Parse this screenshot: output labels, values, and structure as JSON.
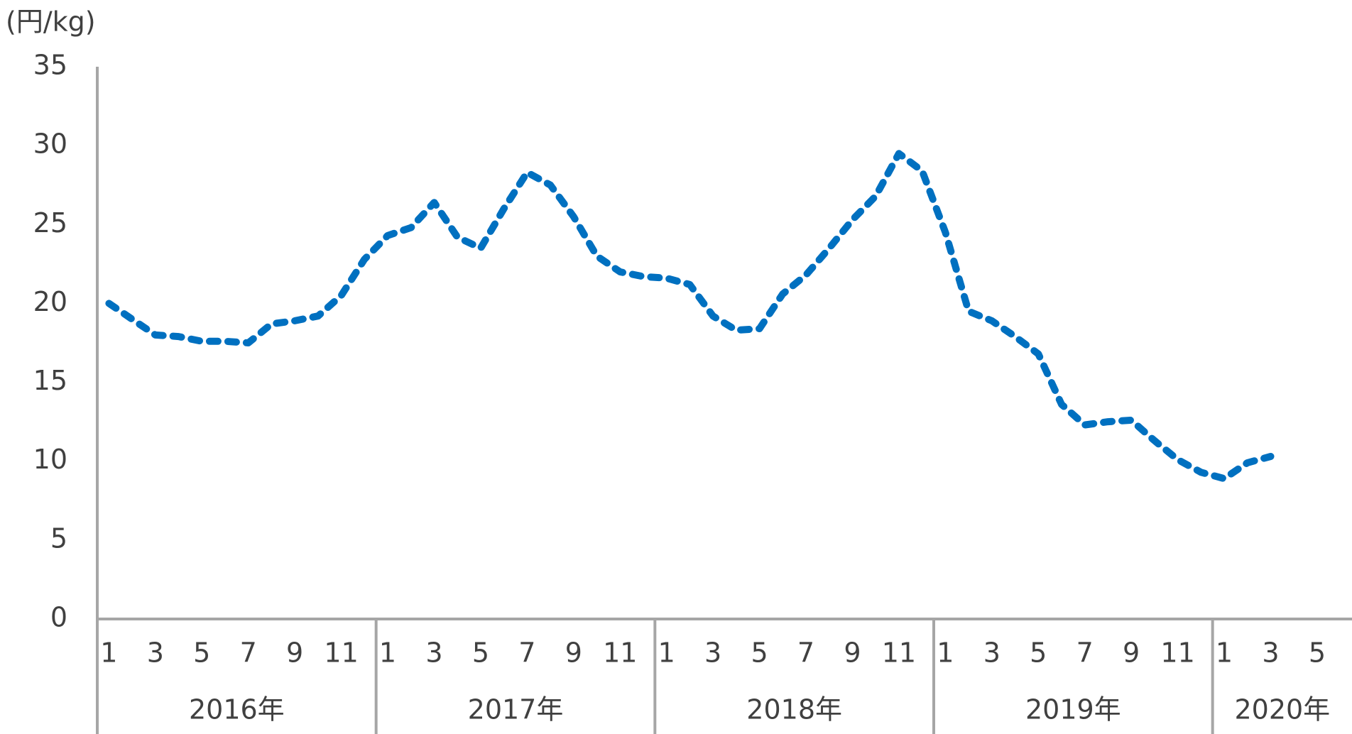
{
  "chart_data": {
    "type": "line",
    "y_label": "(円/kg)",
    "categories": [
      "1",
      null,
      "3",
      null,
      "5",
      null,
      "7",
      null,
      "9",
      null,
      "11",
      null,
      "1",
      null,
      "3",
      null,
      "5",
      null,
      "7",
      null,
      "9",
      null,
      "11",
      null,
      "1",
      null,
      "3",
      null,
      "5",
      null,
      "7",
      null,
      "9",
      null,
      "11",
      null,
      "1",
      null,
      "3",
      null,
      "5",
      null,
      "7",
      null,
      "9",
      null,
      "11",
      null,
      "1",
      null,
      "3",
      null,
      "5",
      null
    ],
    "years": [
      "2016年",
      "2017年",
      "2018年",
      "2019年",
      "2020年"
    ],
    "series": [
      {
        "color": "#0070c0",
        "values": [
          20.0,
          19.0,
          18.0,
          17.9,
          17.6,
          17.6,
          17.5,
          18.7,
          18.9,
          19.2,
          20.5,
          22.8,
          24.3,
          24.8,
          26.4,
          24.2,
          23.5,
          26.0,
          28.3,
          27.5,
          25.5,
          23.0,
          22.0,
          21.7,
          21.6,
          21.2,
          19.2,
          18.3,
          18.4,
          20.6,
          21.8,
          23.5,
          25.3,
          26.8,
          29.5,
          28.4,
          24.5,
          19.5,
          18.9,
          17.9,
          16.8,
          13.6,
          12.3,
          12.5,
          12.6,
          11.3,
          10.1,
          9.3,
          8.9,
          9.9,
          10.3,
          null,
          null,
          null
        ]
      }
    ],
    "ylim": [
      0,
      35
    ],
    "yticks": [
      0,
      5,
      10,
      15,
      20,
      25,
      30,
      35
    ],
    "grid": false,
    "dashed": true
  }
}
